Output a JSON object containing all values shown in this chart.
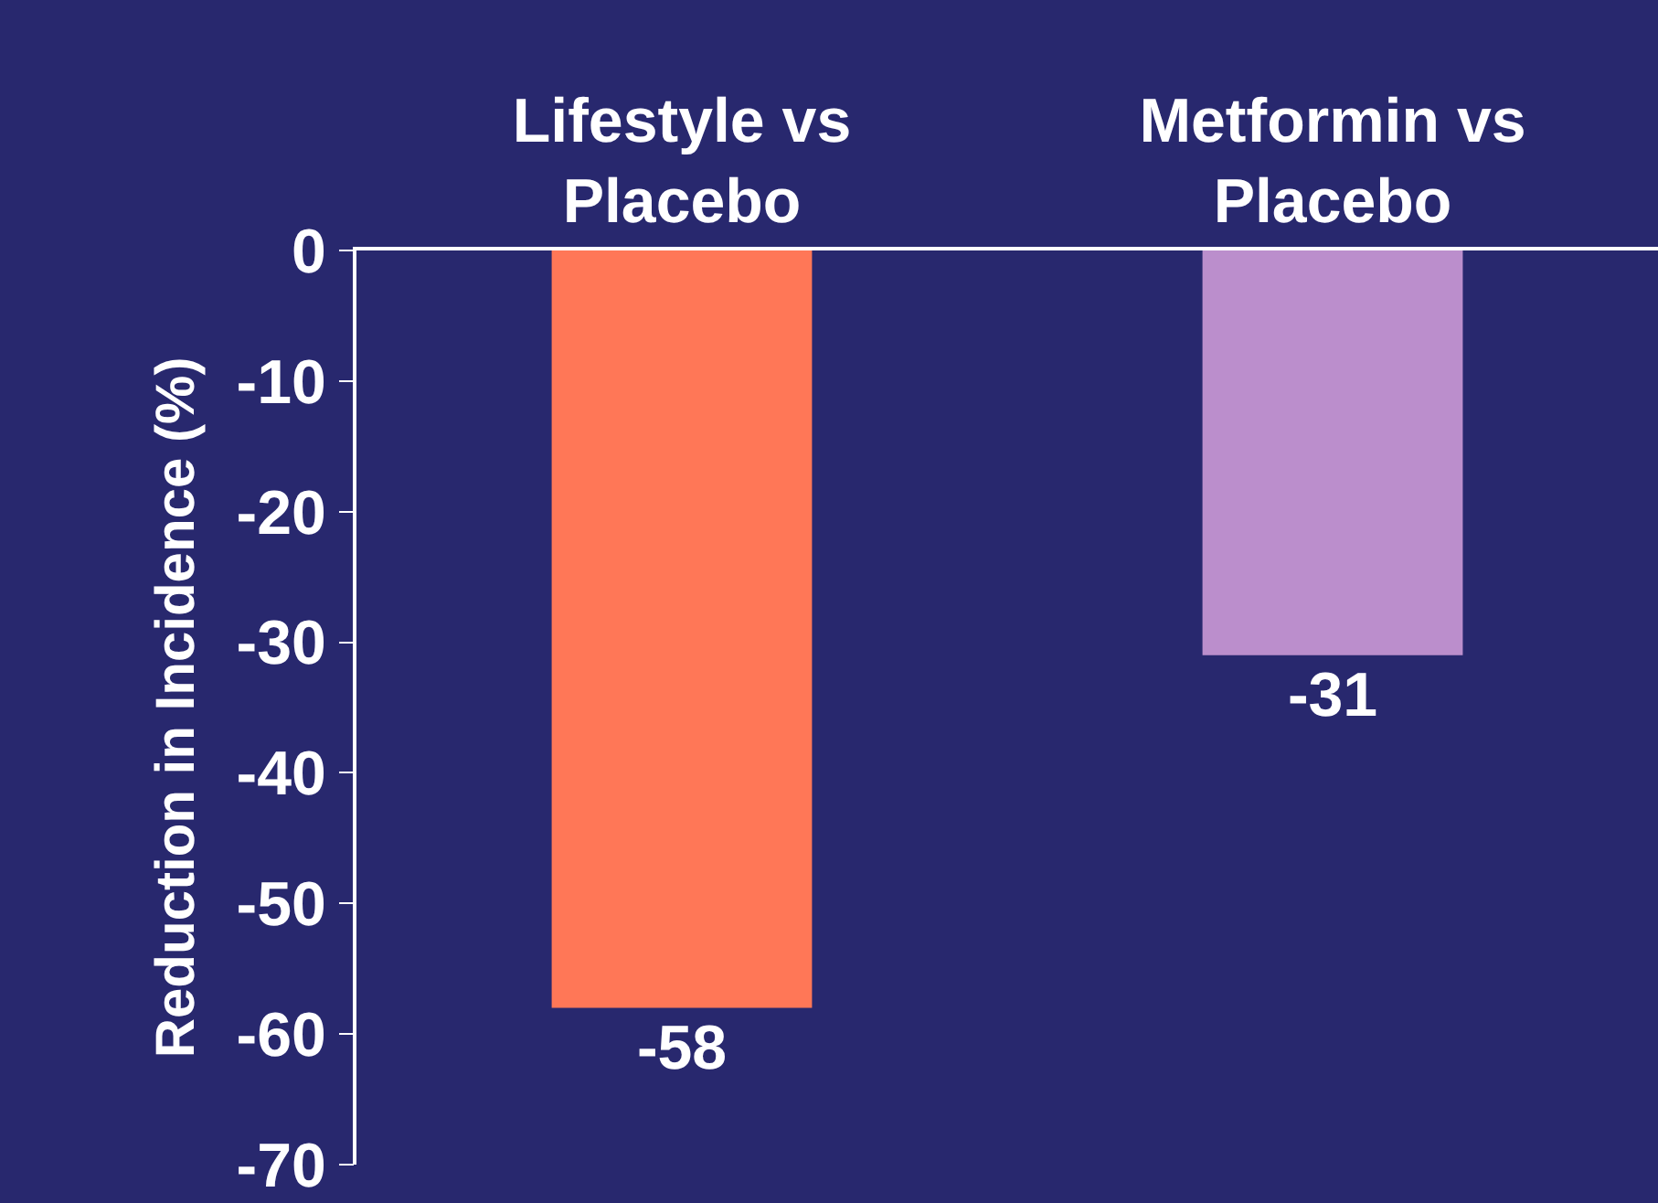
{
  "chart_data": {
    "type": "bar",
    "ylabel": "Reduction in Incidence (%)",
    "categories": [
      "Lifestyle vs Placebo",
      "Metformin vs Placebo"
    ],
    "values": [
      -58,
      -31
    ],
    "colors": [
      "#ff7757",
      "#bb8ecc"
    ],
    "ylim": [
      -70,
      0
    ],
    "yticks": [
      0,
      -10,
      -20,
      -30,
      -40,
      -50,
      -60,
      -70
    ],
    "data_labels": true
  }
}
